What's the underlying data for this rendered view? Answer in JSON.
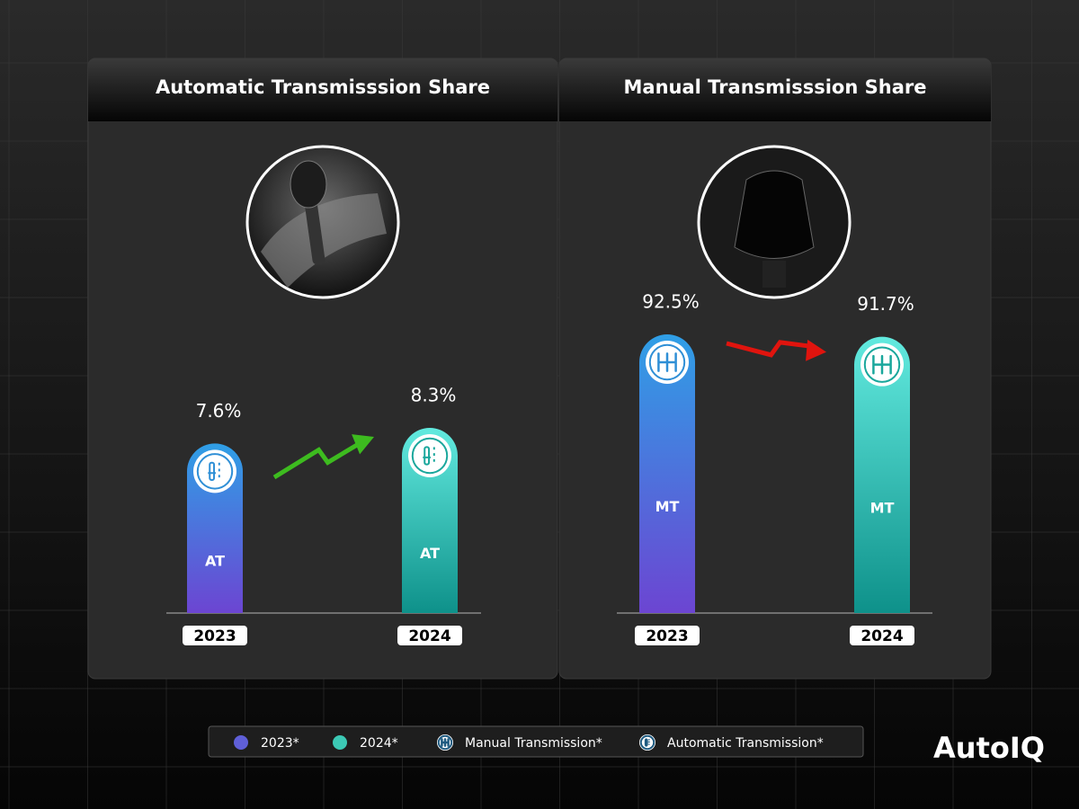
{
  "chart_data": [
    {
      "type": "bar",
      "title": "Automatic Transmisssion Share",
      "categories": [
        "2023",
        "2024"
      ],
      "values": [
        7.6,
        8.3
      ],
      "value_labels": [
        "7.6%",
        "8.3%"
      ],
      "bar_label": "AT",
      "colors": [
        {
          "top": "#2f9fe6",
          "bottom": "#6c45d2"
        },
        {
          "top": "#62eadf",
          "bottom": "#0e918a"
        }
      ]
    },
    {
      "type": "bar",
      "title": "Manual Transmisssion Share",
      "categories": [
        "2023",
        "2024"
      ],
      "values": [
        92.5,
        91.7
      ],
      "value_labels": [
        "92.5%",
        "91.7%"
      ],
      "bar_label": "MT",
      "colors": [
        {
          "top": "#2f9fe6",
          "bottom": "#6c45d2"
        },
        {
          "top": "#62eadf",
          "bottom": "#0e918a"
        }
      ]
    }
  ],
  "legend": [
    {
      "label": "2023*",
      "color": "#5f5fd8"
    },
    {
      "label": "2024*",
      "color": "#3cc9b5"
    },
    {
      "label": "Manual Transmission*"
    },
    {
      "label": "Automatic Transmission*"
    }
  ],
  "brand": "AutoIQ"
}
